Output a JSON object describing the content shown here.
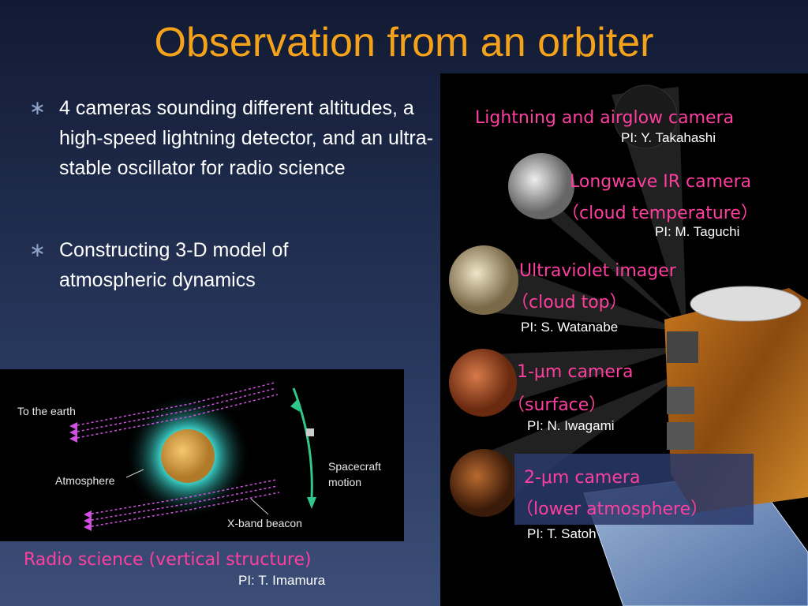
{
  "title": "Observation from an orbiter",
  "bullets": [
    "4 cameras sounding different altitudes, a high-speed lightning detector, and an ultra-stable oscillator for radio science",
    "Constructing 3-D model of atmospheric dynamics"
  ],
  "instruments": [
    {
      "name": "Lightning and airglow camera",
      "pi": "PI: Y. Takahashi"
    },
    {
      "name": "Longwave IR camera",
      "detail": "（cloud temperature）",
      "pi": "PI: M. Taguchi"
    },
    {
      "name": "Ultraviolet imager",
      "detail": "（cloud top）",
      "pi": "PI: S. Watanabe"
    },
    {
      "name": "1-μm camera",
      "detail": "（surface）",
      "pi": "PI: N. Iwagami"
    },
    {
      "name": "2-μm camera",
      "detail": "（lower atmosphere）",
      "pi": "PI: T. Satoh"
    }
  ],
  "radio_diagram": {
    "to_earth": "To the earth",
    "atmosphere": "Atmosphere",
    "beacon": "X-band beacon",
    "motion": [
      "Spacecraft",
      "motion"
    ],
    "caption": "Radio science (vertical structure)",
    "pi": "PI: T. Imamura"
  }
}
